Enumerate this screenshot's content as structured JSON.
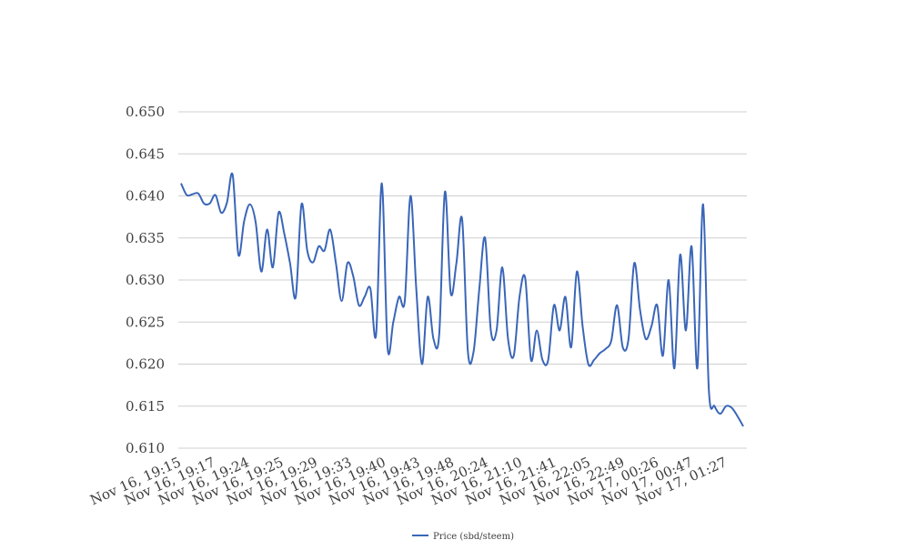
{
  "chart_data": {
    "type": "line",
    "title": "",
    "xlabel": "",
    "ylabel": "",
    "ylim": [
      0.61,
      0.65
    ],
    "yticks": [
      "0.610",
      "0.615",
      "0.620",
      "0.625",
      "0.630",
      "0.635",
      "0.640",
      "0.645",
      "0.650"
    ],
    "xtick_labels": [
      "Nov 16, 19:15",
      "Nov 16, 19:17",
      "Nov 16, 19:24",
      "Nov 16, 19:25",
      "Nov 16, 19:29",
      "Nov 16, 19:33",
      "Nov 16, 19:40",
      "Nov 16, 19:43",
      "Nov 16, 19:48",
      "Nov 16, 20:24",
      "Nov 16, 21:10",
      "Nov 16, 21:41",
      "Nov 16, 22:05",
      "Nov 16, 22:49",
      "Nov 17, 00:26",
      "Nov 17, 00:47",
      "Nov 17, 01:27"
    ],
    "grid": true,
    "legend_position": "bottom",
    "color": "#3a66b8",
    "series": [
      {
        "name": "Price (sbd/steem)",
        "values": [
          0.6415,
          0.6401,
          0.6402,
          0.6403,
          0.6391,
          0.6391,
          0.6401,
          0.638,
          0.6392,
          0.6425,
          0.633,
          0.637,
          0.639,
          0.6369,
          0.631,
          0.636,
          0.6315,
          0.638,
          0.6355,
          0.632,
          0.628,
          0.639,
          0.6335,
          0.6321,
          0.634,
          0.6335,
          0.636,
          0.632,
          0.6275,
          0.632,
          0.6305,
          0.627,
          0.628,
          0.629,
          0.6235,
          0.6415,
          0.622,
          0.625,
          0.628,
          0.6275,
          0.64,
          0.629,
          0.62,
          0.628,
          0.623,
          0.6235,
          0.6405,
          0.6285,
          0.632,
          0.6372,
          0.6215,
          0.6215,
          0.629,
          0.635,
          0.624,
          0.624,
          0.6315,
          0.623,
          0.621,
          0.628,
          0.6302,
          0.6205,
          0.624,
          0.6205,
          0.6205,
          0.627,
          0.624,
          0.628,
          0.622,
          0.631,
          0.6245,
          0.62,
          0.6205,
          0.6213,
          0.6218,
          0.6228,
          0.627,
          0.622,
          0.623,
          0.632,
          0.6265,
          0.623,
          0.6245,
          0.627,
          0.621,
          0.63,
          0.6195,
          0.633,
          0.624,
          0.634,
          0.6195,
          0.639,
          0.617,
          0.615,
          0.6141,
          0.615,
          0.6148,
          0.6138,
          0.6126
        ]
      }
    ]
  }
}
